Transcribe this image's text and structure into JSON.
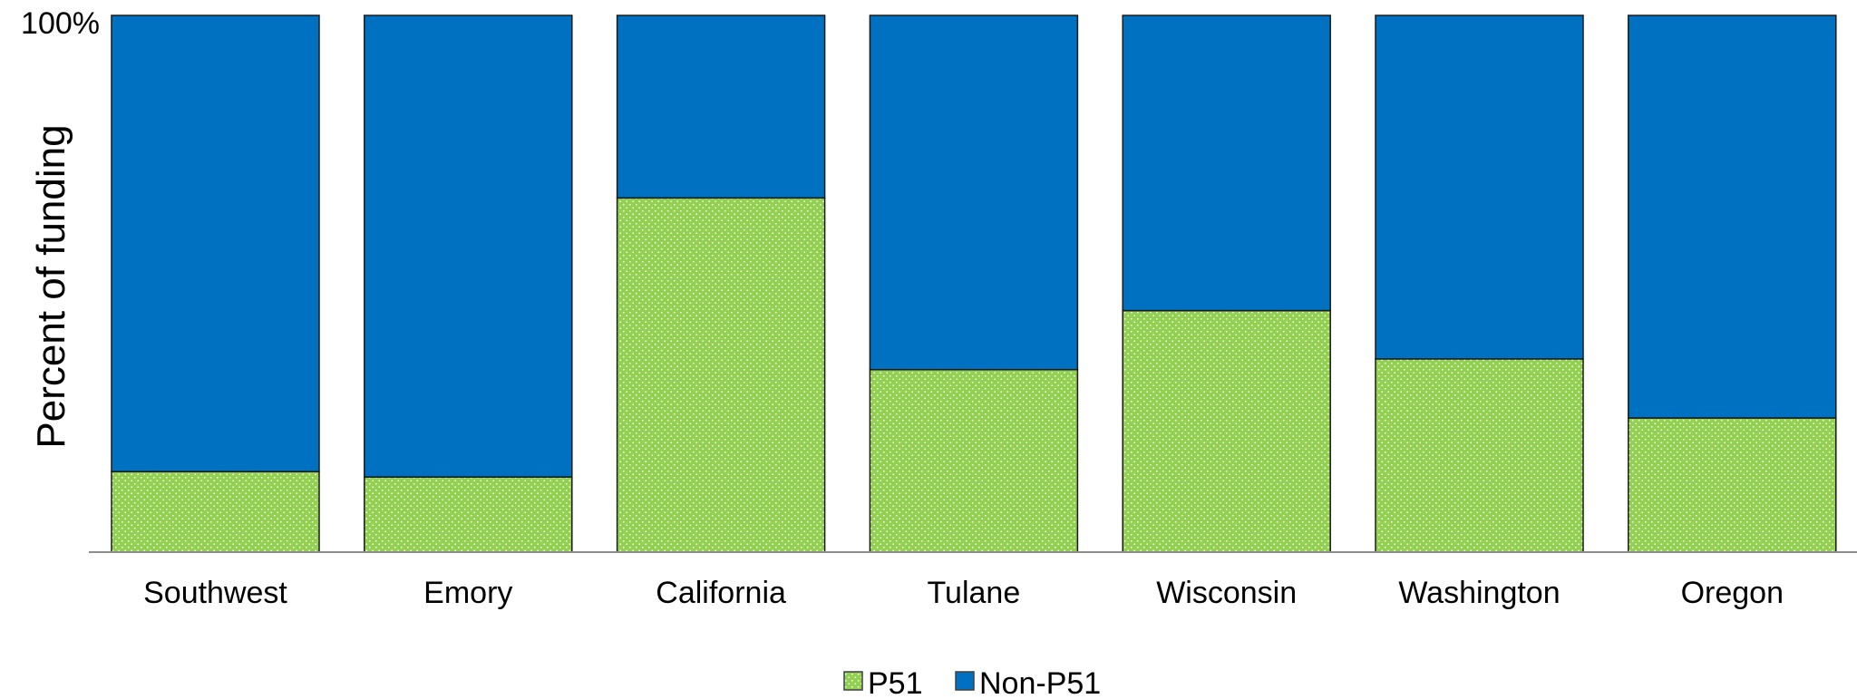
{
  "chart_data": {
    "type": "bar",
    "stacked": true,
    "percent": true,
    "categories": [
      "Southwest",
      "Emory",
      "California",
      "Tulane",
      "Wisconsin",
      "Washington",
      "Oregon"
    ],
    "series": [
      {
        "name": "P51",
        "color": "#92D050",
        "pattern": "dots",
        "values": [
          15,
          14,
          66,
          34,
          45,
          36,
          25
        ]
      },
      {
        "name": "Non-P51",
        "color": "#0070C0",
        "values": [
          85,
          86,
          34,
          66,
          55,
          64,
          75
        ]
      }
    ],
    "ylim": [
      0,
      100
    ],
    "ytick_labels": [
      "100%"
    ],
    "ylabel": "Percent of funding",
    "xlabel": "",
    "legend_position": "bottom",
    "grid": false
  }
}
